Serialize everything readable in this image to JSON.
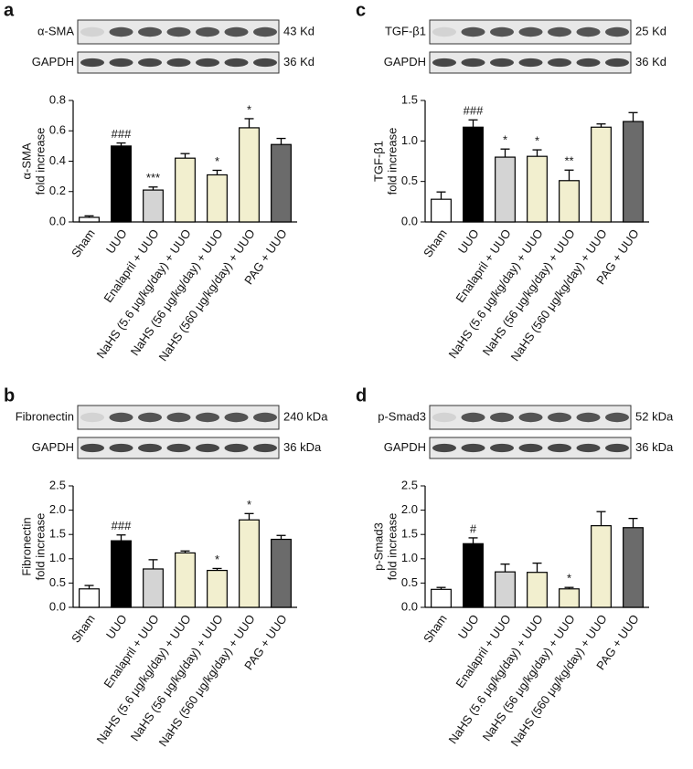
{
  "chart_data": [
    {
      "type": "bar",
      "panel": "a",
      "blot": [
        {
          "label": "α-SMA",
          "size": "43 Kd"
        },
        {
          "label": "GAPDH",
          "size": "36 Kd"
        }
      ],
      "ylabel": [
        "α-SMA",
        "fold increase"
      ],
      "categories": [
        "Sham",
        "UUO",
        "Enalapril + UUO",
        "NaHS (5.6 μg/kg/day) + UUO",
        "NaHS (56 μg/kg/day) + UUO",
        "NaHS (560 μg/kg/day) + UUO",
        "PAG + UUO"
      ],
      "values": [
        0.03,
        0.5,
        0.21,
        0.42,
        0.31,
        0.62,
        0.51
      ],
      "errors": [
        0.01,
        0.02,
        0.02,
        0.03,
        0.03,
        0.06,
        0.04
      ],
      "annotations": [
        null,
        "###",
        "***",
        null,
        "*",
        "*",
        null
      ],
      "colors": [
        "#ffffff",
        "#000000",
        "#d4d4d4",
        "#f2efcf",
        "#f2efcf",
        "#f2efcf",
        "#6b6b6b"
      ],
      "ylim": [
        0,
        0.8
      ],
      "yticks": [
        {
          "value": 0,
          "label": "0.0"
        },
        0.2,
        0.4,
        0.6,
        0.8
      ]
    },
    {
      "type": "bar",
      "panel": "c",
      "blot": [
        {
          "label": "TGF-β1",
          "size": "25 Kd"
        },
        {
          "label": "GAPDH",
          "size": "36 Kd"
        }
      ],
      "ylabel": [
        "TGF-β1",
        "fold increase"
      ],
      "categories": [
        "Sham",
        "UUO",
        "Enalapril + UUO",
        "NaHS (5.6 μg/kg/day) + UUO",
        "NaHS (56 μg/kg/day) + UUO",
        "NaHS (560 μg/kg/day) + UUO",
        "PAG + UUO"
      ],
      "values": [
        0.28,
        1.17,
        0.8,
        0.81,
        0.51,
        1.17,
        1.24
      ],
      "errors": [
        0.09,
        0.09,
        0.1,
        0.08,
        0.13,
        0.04,
        0.11
      ],
      "annotations": [
        null,
        "###",
        "*",
        "*",
        "**",
        null,
        null
      ],
      "colors": [
        "#ffffff",
        "#000000",
        "#d4d4d4",
        "#f2efcf",
        "#f2efcf",
        "#f2efcf",
        "#6b6b6b"
      ],
      "ylim": [
        0,
        1.5
      ],
      "yticks": [
        {
          "value": 0,
          "label": "0.0"
        },
        0.5,
        {
          "value": 1,
          "label": "1.0"
        },
        1.5
      ]
    },
    {
      "type": "bar",
      "panel": "b",
      "blot": [
        {
          "label": "Fibronectin",
          "size": "240 kDa"
        },
        {
          "label": "GAPDH",
          "size": "36 kDa"
        }
      ],
      "ylabel": [
        "Fibronectin",
        "fold increase"
      ],
      "categories": [
        "Sham",
        "UUO",
        "Enalapril + UUO",
        "NaHS (5.6 μg/kg/day) + UUO",
        "NaHS (56 μg/kg/day) + UUO",
        "NaHS (560 μg/kg/day) + UUO",
        "PAG + UUO"
      ],
      "values": [
        0.38,
        1.37,
        0.79,
        1.12,
        0.76,
        1.8,
        1.4
      ],
      "errors": [
        0.07,
        0.12,
        0.19,
        0.04,
        0.04,
        0.13,
        0.08
      ],
      "annotations": [
        null,
        "###",
        null,
        null,
        "*",
        "*",
        null
      ],
      "colors": [
        "#ffffff",
        "#000000",
        "#d4d4d4",
        "#f2efcf",
        "#f2efcf",
        "#f2efcf",
        "#6b6b6b"
      ],
      "ylim": [
        0,
        2.5
      ],
      "yticks": [
        {
          "value": 0,
          "label": "0.0"
        },
        0.5,
        {
          "value": 1,
          "label": "1.0"
        },
        1.5,
        {
          "value": 2,
          "label": "2.0"
        },
        2.5
      ]
    },
    {
      "type": "bar",
      "panel": "d",
      "blot": [
        {
          "label": "p-Smad3",
          "size": "52 kDa"
        },
        {
          "label": "GAPDH",
          "size": "36 kDa"
        }
      ],
      "ylabel": [
        "p-Smad3",
        "fold increase"
      ],
      "categories": [
        "Sham",
        "UUO",
        "Enalapril + UUO",
        "NaHS (5.6 μg/kg/day) + UUO",
        "NaHS (56 μg/kg/day) + UUO",
        "NaHS (560 μg/kg/day) + UUO",
        "PAG + UUO"
      ],
      "values": [
        0.37,
        1.31,
        0.73,
        0.72,
        0.38,
        1.68,
        1.64
      ],
      "errors": [
        0.04,
        0.12,
        0.16,
        0.19,
        0.03,
        0.29,
        0.19
      ],
      "annotations": [
        null,
        "#",
        null,
        null,
        "*",
        null,
        null
      ],
      "colors": [
        "#ffffff",
        "#000000",
        "#d4d4d4",
        "#f2efcf",
        "#f2efcf",
        "#f2efcf",
        "#6b6b6b"
      ],
      "ylim": [
        0,
        2.5
      ],
      "yticks": [
        {
          "value": 0,
          "label": "0.0"
        },
        0.5,
        {
          "value": 1,
          "label": "1.0"
        },
        1.5,
        {
          "value": 2,
          "label": "2.0"
        },
        2.5
      ]
    }
  ]
}
